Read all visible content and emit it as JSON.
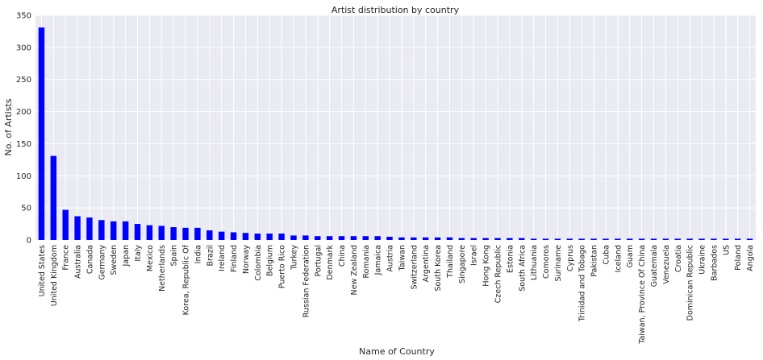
{
  "chart_data": {
    "type": "bar",
    "title": "Artist distribution by country",
    "xlabel": "Name of Country",
    "ylabel": "No. of Artists",
    "ylim": [
      0,
      350
    ],
    "yticks": [
      0,
      50,
      100,
      150,
      200,
      250,
      300,
      350
    ],
    "grid": true,
    "bar_color": "#0000ff",
    "plot_background": "#eaeaf2",
    "grid_color": "#ffffff",
    "categories": [
      "United States",
      "United Kingdom",
      "France",
      "Australia",
      "Canada",
      "Germany",
      "Sweden",
      "Japan",
      "Italy",
      "Mexico",
      "Netherlands",
      "Spain",
      "Korea, Republic Of",
      "India",
      "Brazil",
      "Ireland",
      "Finland",
      "Norway",
      "Colombia",
      "Belgium",
      "Puerto Rico",
      "Turkey",
      "Russian Federation",
      "Portugal",
      "Denmark",
      "China",
      "New Zealand",
      "Romania",
      "Jamaica",
      "Austria",
      "Taiwan",
      "Switzerland",
      "Argentina",
      "South Korea",
      "Thailand",
      "Singapore",
      "Israel",
      "Hong Kong",
      "Czech Republic",
      "Estonia",
      "South Africa",
      "Lithuania",
      "Comoros",
      "Suriname",
      "Cyprus",
      "Trinidad and Tobago",
      "Pakistan",
      "Cuba",
      "Iceland",
      "Guam",
      "Taiwan, Province Of China",
      "Guatemala",
      "Venezuela",
      "Croatia",
      "Dominican Republic",
      "Ukraine",
      "Barbados",
      "US",
      "Poland",
      "Angola"
    ],
    "values": [
      331,
      131,
      47,
      37,
      35,
      31,
      29,
      29,
      25,
      23,
      22,
      20,
      19,
      19,
      15,
      13,
      12,
      11,
      10,
      10,
      10,
      7,
      7,
      6,
      6,
      6,
      6,
      6,
      6,
      5,
      4,
      4,
      4,
      4,
      4,
      3,
      3,
      3,
      3,
      3,
      3,
      2,
      2,
      2,
      2,
      2,
      2,
      2,
      2,
      2,
      2,
      2,
      2,
      2,
      2,
      2,
      2,
      2,
      2,
      2
    ]
  }
}
